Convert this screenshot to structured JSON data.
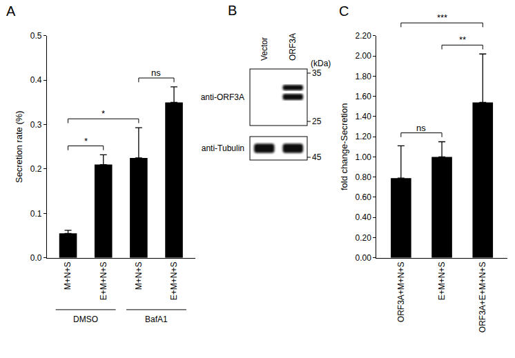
{
  "chart_data": [
    {
      "type": "bar",
      "title": "A",
      "y_label": "Secretion rate (%)",
      "categories": [
        "M+N+S",
        "E+M+N+S",
        "M+N+S",
        "E+M+N+S"
      ],
      "values": [
        0.055,
        0.21,
        0.225,
        0.35
      ],
      "errors": [
        0.007,
        0.022,
        0.068,
        0.035
      ],
      "color": "#000000",
      "ylim": [
        0,
        0.5
      ],
      "yticks": [
        {
          "value": 0,
          "label": "0.0"
        },
        0.1,
        0.2,
        0.3,
        0.4,
        0.5
      ],
      "grid": false,
      "groups": [
        {
          "label": "DMSO",
          "members": [
            0,
            1
          ]
        },
        {
          "label": "BafA1",
          "members": [
            2,
            3
          ]
        }
      ],
      "significance": [
        {
          "text": "*",
          "from": 0,
          "to": 1
        },
        {
          "text": "*",
          "from": 0,
          "to": 2
        },
        {
          "text": "ns",
          "from": 2,
          "to": 3
        }
      ]
    },
    {
      "type": "bar",
      "title": "C",
      "y_label": "fold change-Secretion",
      "categories": [
        "ORF3A+M+N+S",
        "E+M+N+S",
        "ORF3A+E+M+N+S"
      ],
      "values": [
        0.79,
        1.0,
        1.54
      ],
      "errors": [
        0.32,
        0.15,
        0.48
      ],
      "color": "#000000",
      "ylim": [
        0,
        2.2
      ],
      "yticks": [
        {
          "value": 0,
          "label": "0.00"
        },
        {
          "value": 0.2,
          "label": "0.20"
        },
        {
          "value": 0.4,
          "label": "0.40"
        },
        {
          "value": 0.6,
          "label": "0.60"
        },
        {
          "value": 0.8,
          "label": "0.80"
        },
        {
          "value": 1,
          "label": "1.00"
        },
        {
          "value": 1.2,
          "label": "1.20"
        },
        {
          "value": 1.4,
          "label": "1.40"
        },
        {
          "value": 1.6,
          "label": "1.60"
        },
        {
          "value": 1.8,
          "label": "1.80"
        },
        {
          "value": 2,
          "label": "2.00"
        },
        {
          "value": 2.2,
          "label": "2.20"
        }
      ],
      "grid": false,
      "significance": [
        {
          "text": "ns",
          "from": 0,
          "to": 1
        },
        {
          "text": "**",
          "from": 1,
          "to": 2
        },
        {
          "text": "***",
          "from": 0,
          "to": 2
        }
      ]
    }
  ],
  "blot": {
    "title": "B",
    "lanes": [
      "Vector",
      "ORF3A"
    ],
    "unit": "(kDa)",
    "rows": [
      {
        "label": "anti-ORF3A",
        "markers": [
          35,
          25
        ],
        "bands": [
          false,
          true
        ]
      },
      {
        "label": "anti-Tubulin",
        "markers": [
          45
        ],
        "bands": [
          true,
          true
        ]
      }
    ]
  }
}
